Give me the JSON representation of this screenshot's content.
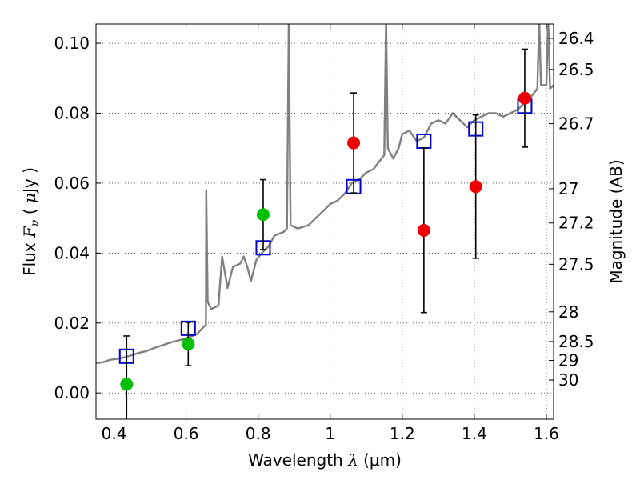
{
  "chart_data": {
    "type": "scatter",
    "xlabel": "Wavelength  λ (μm)",
    "xlabel_parts": {
      "prefix": "Wavelength ",
      "lambda": "λ",
      "unit": "(μm)"
    },
    "ylabel": "Flux  Fν  ( μJy )",
    "ylabel_parts": {
      "prefix": "Flux ",
      "symbol": "F",
      "sub": "ν",
      "unit_open": "( ",
      "mu": "μ",
      "unit_rest": "Jy )"
    },
    "y2label": "Magnitude (AB)",
    "xlim": [
      0.35,
      1.62
    ],
    "ylim": [
      -0.0075,
      0.1055
    ],
    "grid": true,
    "x_ticks": [
      0.4,
      0.6,
      0.8,
      1.0,
      1.2,
      1.4,
      1.6
    ],
    "x_tick_labels": [
      "0.4",
      "0.6",
      "0.8",
      "1",
      "1.2",
      "1.4",
      "1.6"
    ],
    "y_ticks": [
      0.0,
      0.02,
      0.04,
      0.06,
      0.08,
      0.1
    ],
    "y_tick_labels": [
      "0.00",
      "0.02",
      "0.04",
      "0.06",
      "0.08",
      "0.10"
    ],
    "y2_ticks": [
      {
        "label": "26.4",
        "flux": 0.1014
      },
      {
        "label": "26.5",
        "flux": 0.0925
      },
      {
        "label": "26.7",
        "flux": 0.077
      },
      {
        "label": "27",
        "flux": 0.0584
      },
      {
        "label": "27.2",
        "flux": 0.0486
      },
      {
        "label": "27.5",
        "flux": 0.0368
      },
      {
        "label": "28",
        "flux": 0.0232
      },
      {
        "label": "28.5",
        "flux": 0.0147
      },
      {
        "label": "29",
        "flux": 0.0093
      },
      {
        "label": "30",
        "flux": 0.0037
      }
    ],
    "series": [
      {
        "name": "model_spectrum",
        "kind": "line",
        "color": "#808080",
        "points": [
          [
            0.35,
            0.0085
          ],
          [
            0.37,
            0.0088
          ],
          [
            0.39,
            0.0095
          ],
          [
            0.41,
            0.0098
          ],
          [
            0.43,
            0.0102
          ],
          [
            0.45,
            0.0108
          ],
          [
            0.47,
            0.0115
          ],
          [
            0.49,
            0.012
          ],
          [
            0.51,
            0.0128
          ],
          [
            0.53,
            0.0135
          ],
          [
            0.55,
            0.0142
          ],
          [
            0.57,
            0.0148
          ],
          [
            0.59,
            0.0153
          ],
          [
            0.61,
            0.016
          ],
          [
            0.63,
            0.0168
          ],
          [
            0.645,
            0.0185
          ],
          [
            0.655,
            0.0195
          ],
          [
            0.656,
            0.058
          ],
          [
            0.66,
            0.026
          ],
          [
            0.67,
            0.024
          ],
          [
            0.69,
            0.025
          ],
          [
            0.7,
            0.039
          ],
          [
            0.715,
            0.03
          ],
          [
            0.73,
            0.036
          ],
          [
            0.75,
            0.037
          ],
          [
            0.76,
            0.039
          ],
          [
            0.77,
            0.036
          ],
          [
            0.78,
            0.032
          ],
          [
            0.795,
            0.038
          ],
          [
            0.81,
            0.04
          ],
          [
            0.83,
            0.042
          ],
          [
            0.845,
            0.045
          ],
          [
            0.87,
            0.046
          ],
          [
            0.88,
            0.047
          ],
          [
            0.885,
            0.107
          ],
          [
            0.89,
            0.048
          ],
          [
            0.91,
            0.047
          ],
          [
            0.94,
            0.048
          ],
          [
            0.97,
            0.051
          ],
          [
            1.0,
            0.054
          ],
          [
            1.02,
            0.055
          ],
          [
            1.04,
            0.057
          ],
          [
            1.06,
            0.06
          ],
          [
            1.08,
            0.061
          ],
          [
            1.1,
            0.063
          ],
          [
            1.12,
            0.064
          ],
          [
            1.15,
            0.068
          ],
          [
            1.155,
            0.107
          ],
          [
            1.16,
            0.07
          ],
          [
            1.175,
            0.067
          ],
          [
            1.19,
            0.07
          ],
          [
            1.2,
            0.074
          ],
          [
            1.22,
            0.075
          ],
          [
            1.24,
            0.072
          ],
          [
            1.26,
            0.073
          ],
          [
            1.28,
            0.077
          ],
          [
            1.3,
            0.078
          ],
          [
            1.32,
            0.077
          ],
          [
            1.34,
            0.08
          ],
          [
            1.36,
            0.078
          ],
          [
            1.38,
            0.076
          ],
          [
            1.4,
            0.078
          ],
          [
            1.42,
            0.079
          ],
          [
            1.44,
            0.08
          ],
          [
            1.46,
            0.08
          ],
          [
            1.48,
            0.079
          ],
          [
            1.5,
            0.08
          ],
          [
            1.52,
            0.081
          ],
          [
            1.54,
            0.083
          ],
          [
            1.56,
            0.085
          ],
          [
            1.575,
            0.087
          ],
          [
            1.58,
            0.107
          ],
          [
            1.585,
            0.088
          ],
          [
            1.6,
            0.088
          ],
          [
            1.605,
            0.107
          ],
          [
            1.61,
            0.087
          ],
          [
            1.62,
            0.088
          ]
        ]
      },
      {
        "name": "model_photometry",
        "kind": "square",
        "color": "#0000cc",
        "x": [
          0.435,
          0.606,
          0.814,
          1.065,
          1.26,
          1.404,
          1.54
        ],
        "y": [
          0.0105,
          0.0185,
          0.0415,
          0.059,
          0.072,
          0.0755,
          0.082
        ]
      },
      {
        "name": "observed_optical",
        "kind": "point",
        "color": "#00c000",
        "x": [
          0.435,
          0.606,
          0.814
        ],
        "y": [
          0.0025,
          0.014,
          0.051
        ],
        "yerr": [
          0.0138,
          0.0062,
          0.01
        ]
      },
      {
        "name": "observed_nir",
        "kind": "point",
        "color": "#ee0000",
        "x": [
          1.065,
          1.26,
          1.404,
          1.54
        ],
        "y": [
          0.0715,
          0.0465,
          0.059,
          0.0843
        ],
        "yerr": [
          0.0143,
          0.0235,
          0.0205,
          0.014
        ]
      }
    ]
  }
}
